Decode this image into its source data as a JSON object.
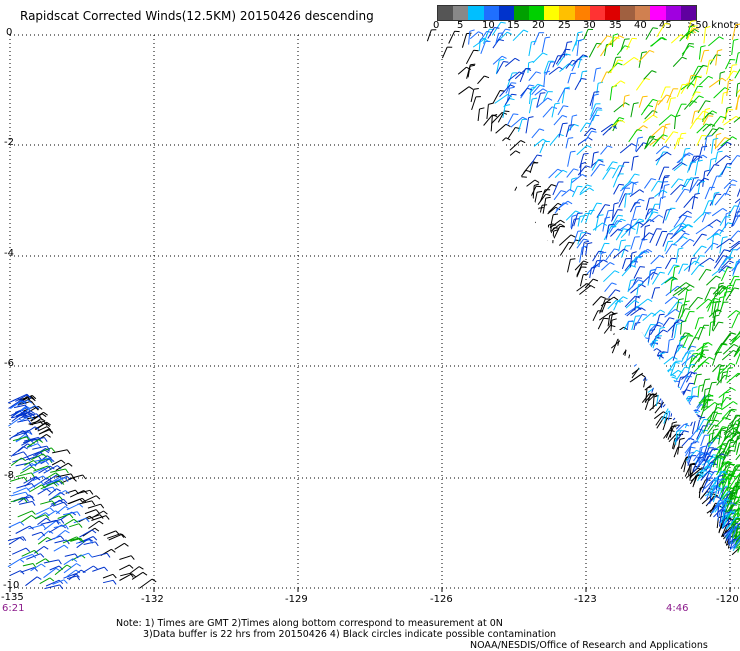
{
  "title": "Rapidscat Corrected Winds(12.5KM) 20150426 descending",
  "legend": {
    "colors": [
      "#555555",
      "#888888",
      "#00bfff",
      "#1f6fff",
      "#0033cc",
      "#00a000",
      "#00d000",
      "#ffff00",
      "#ffc000",
      "#ff8000",
      "#ff3333",
      "#dd0000",
      "#a06040",
      "#d08050",
      "#ff00ff",
      "#a000e0",
      "#6000a0"
    ],
    "ticks": [
      "0",
      "5",
      "10",
      "15",
      "20",
      "25",
      "30",
      "35",
      "40",
      "45",
      ">50 knots"
    ]
  },
  "lat_labels": [
    "0",
    "-2",
    "-4",
    "-6",
    "-8",
    "-10"
  ],
  "lon_labels": [
    "-135",
    "-132",
    "-129",
    "-126",
    "-123",
    "-120"
  ],
  "time_labels": {
    "left": "6:21",
    "right": "4:46"
  },
  "notes": [
    "Note: 1) Times are GMT 2)Times along bottom correspond to measurement at 0N",
    "3)Data buffer is 22 hrs from 20150426 4) Black circles indicate possible contamination",
    "NOAA/NESDIS/Office of Research and Applications"
  ]
}
